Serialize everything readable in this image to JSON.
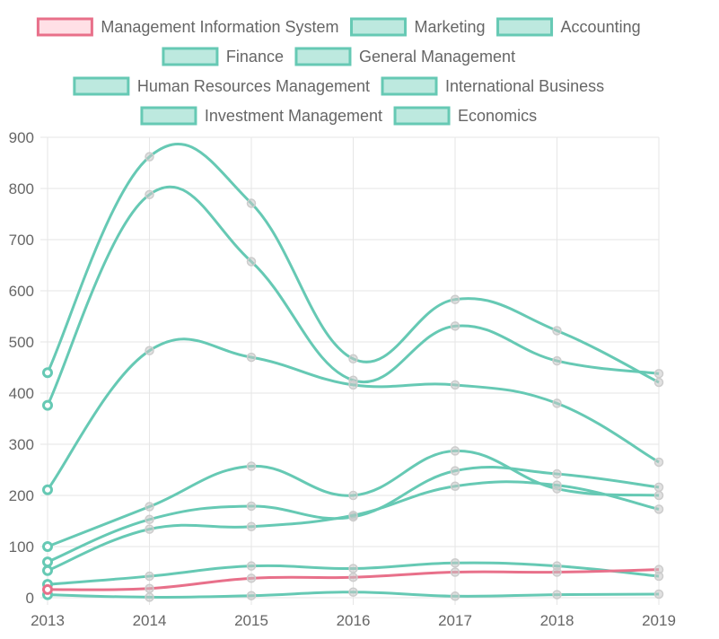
{
  "chart_data": {
    "type": "line",
    "x": [
      "2013",
      "2014",
      "2015",
      "2016",
      "2017",
      "2018",
      "2019"
    ],
    "ylim": [
      0,
      900
    ],
    "yticks": [
      0,
      100,
      200,
      300,
      400,
      500,
      600,
      700,
      800,
      900
    ],
    "grid": true,
    "legend_position": "top",
    "colors": {
      "highlight": "#e8708a",
      "highlight_fill": "#ffe0e6",
      "series": "#66c9b4",
      "series_fill": "#bde9df",
      "grid": "#e6e6e6",
      "point": "#cccccc"
    },
    "series": [
      {
        "name": "Management Information System",
        "values": [
          16,
          18,
          38,
          40,
          50,
          50,
          55
        ],
        "highlight": true
      },
      {
        "name": "Marketing",
        "values": [
          440,
          862,
          771,
          467,
          583,
          522,
          421
        ]
      },
      {
        "name": "Accounting",
        "values": [
          376,
          788,
          657,
          425,
          531,
          463,
          438
        ]
      },
      {
        "name": "Finance",
        "values": [
          211,
          483,
          470,
          416,
          416,
          380,
          265
        ]
      },
      {
        "name": "General Management",
        "values": [
          100,
          178,
          257,
          200,
          287,
          213,
          200
        ]
      },
      {
        "name": "Human Resources Management",
        "values": [
          70,
          153,
          179,
          158,
          248,
          242,
          216
        ]
      },
      {
        "name": "International Business",
        "values": [
          53,
          134,
          139,
          161,
          218,
          220,
          173
        ]
      },
      {
        "name": "Investment Management",
        "values": [
          26,
          42,
          62,
          57,
          68,
          62,
          42
        ]
      },
      {
        "name": "Economics",
        "values": [
          6,
          1,
          4,
          11,
          3,
          6,
          7
        ]
      }
    ]
  }
}
